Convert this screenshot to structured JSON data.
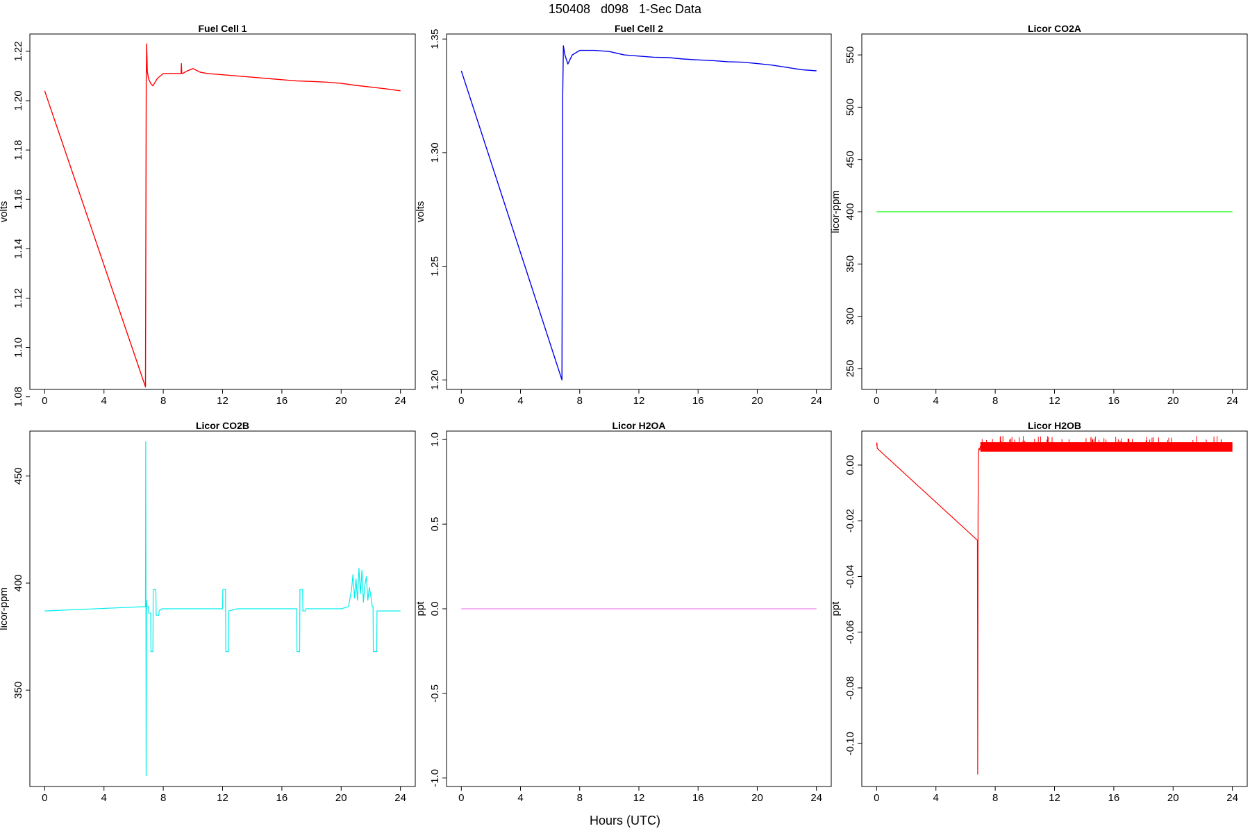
{
  "figure": {
    "title": "150408   d098   1-Sec Data",
    "xlabel": "Hours (UTC)"
  },
  "chart_data": [
    {
      "type": "line",
      "title": "Fuel Cell 1",
      "xlabel": "",
      "ylabel": "volts",
      "xlim": [
        -1,
        25
      ],
      "ylim": [
        1.083,
        1.227
      ],
      "xticks": [
        0,
        4,
        8,
        12,
        16,
        20,
        24
      ],
      "yticks": [
        1.08,
        1.1,
        1.12,
        1.14,
        1.16,
        1.18,
        1.2,
        1.22
      ],
      "ytick_labels": [
        "1.08",
        "1.10",
        "1.12",
        "1.14",
        "1.16",
        "1.18",
        "1.20",
        "1.22"
      ],
      "color": "#ff0000",
      "series": [
        {
          "x": [
            0,
            6.8,
            6.85,
            6.88,
            6.92,
            7.0,
            7.15,
            7.3,
            7.6,
            8.0,
            8.5,
            9.0,
            9.2,
            9.22,
            9.25,
            9.3,
            9.6,
            10.0,
            10.5,
            11.0,
            12.0,
            13.0,
            14.0,
            15.0,
            16.0,
            17.0,
            18.0,
            19.0,
            20.0,
            21.0,
            22.0,
            23.0,
            24.0
          ],
          "y": [
            1.204,
            1.084,
            1.21,
            1.223,
            1.212,
            1.209,
            1.207,
            1.206,
            1.209,
            1.211,
            1.211,
            1.211,
            1.211,
            1.215,
            1.211,
            1.211,
            1.212,
            1.213,
            1.2115,
            1.211,
            1.2105,
            1.21,
            1.2095,
            1.209,
            1.2085,
            1.208,
            1.2078,
            1.2075,
            1.207,
            1.2062,
            1.2055,
            1.2048,
            1.204
          ]
        }
      ]
    },
    {
      "type": "line",
      "title": "Fuel Cell 2",
      "xlabel": "",
      "ylabel": "volts",
      "xlim": [
        -1,
        25
      ],
      "ylim": [
        1.1958,
        1.3522
      ],
      "xticks": [
        0,
        4,
        8,
        12,
        16,
        20,
        24
      ],
      "yticks": [
        1.2,
        1.25,
        1.3,
        1.35
      ],
      "ytick_labels": [
        "1.20",
        "1.25",
        "1.30",
        "1.35"
      ],
      "color": "#0000ee",
      "series": [
        {
          "x": [
            0,
            6.8,
            6.85,
            6.9,
            7.0,
            7.2,
            7.5,
            8.0,
            8.5,
            9.0,
            10.0,
            11.0,
            12.0,
            13.0,
            14.0,
            15.0,
            16.0,
            17.0,
            18.0,
            19.0,
            20.0,
            21.0,
            22.0,
            23.0,
            24.0
          ],
          "y": [
            1.336,
            1.2,
            1.325,
            1.347,
            1.343,
            1.339,
            1.343,
            1.345,
            1.345,
            1.345,
            1.3445,
            1.343,
            1.3425,
            1.342,
            1.3418,
            1.3412,
            1.3408,
            1.3405,
            1.34,
            1.3398,
            1.3392,
            1.3385,
            1.3375,
            1.3365,
            1.336
          ]
        }
      ]
    },
    {
      "type": "line",
      "title": "Licor CO2A",
      "xlabel": "",
      "ylabel": "licor-ppm",
      "xlim": [
        -1,
        25
      ],
      "ylim": [
        230,
        570
      ],
      "xticks": [
        0,
        4,
        8,
        12,
        16,
        20,
        24
      ],
      "yticks": [
        250,
        300,
        350,
        400,
        450,
        500,
        550
      ],
      "ytick_labels": [
        "250",
        "300",
        "350",
        "400",
        "450",
        "500",
        "550"
      ],
      "color": "#00ff00",
      "series": [
        {
          "x": [
            0,
            24
          ],
          "y": [
            400,
            400
          ]
        }
      ]
    },
    {
      "type": "line",
      "title": "Licor CO2B",
      "xlabel": "",
      "ylabel": "licor-ppm",
      "xlim": [
        -1,
        25
      ],
      "ylim": [
        305,
        471
      ],
      "xticks": [
        0,
        4,
        8,
        12,
        16,
        20,
        24
      ],
      "yticks": [
        350,
        400,
        450
      ],
      "ytick_labels": [
        "350",
        "400",
        "450"
      ],
      "color": "#00eeee",
      "series": [
        {
          "x": [
            0,
            6.78,
            6.8,
            6.82,
            6.84,
            6.87,
            6.9,
            6.92,
            7.0,
            7.02,
            7.15,
            7.17,
            7.3,
            7.32,
            7.5,
            7.52,
            7.7,
            7.72,
            7.9,
            8.0,
            9.0,
            10.0,
            11.0,
            12.0,
            12.02,
            12.2,
            12.22,
            12.4,
            12.42,
            13.0,
            14.0,
            15.0,
            16.0,
            17.0,
            17.02,
            17.2,
            17.22,
            17.4,
            17.42,
            17.6,
            17.62,
            18.0,
            19.0,
            20.0,
            20.5,
            20.7,
            20.8,
            20.9,
            21.0,
            21.1,
            21.2,
            21.3,
            21.4,
            21.5,
            21.6,
            21.7,
            21.8,
            21.9,
            22.0,
            22.1,
            22.15,
            22.17,
            22.4,
            22.42,
            23.0,
            24.0
          ],
          "y": [
            387,
            389,
            389,
            466,
            310,
            392,
            389,
            389,
            389,
            386,
            386,
            368,
            368,
            397,
            397,
            385,
            385,
            387,
            388,
            388,
            388,
            388,
            388,
            388,
            397,
            397,
            368,
            368,
            387,
            388,
            388,
            388,
            388,
            388,
            368,
            368,
            397,
            397,
            387,
            387,
            388,
            388,
            388,
            388,
            389,
            397,
            404,
            393,
            402,
            392,
            407,
            395,
            406,
            391,
            399,
            403,
            392,
            398,
            394,
            389,
            389,
            368,
            368,
            387,
            387,
            387
          ]
        }
      ]
    },
    {
      "type": "line",
      "title": "Licor H2OA",
      "xlabel": "",
      "ylabel": "ppt",
      "xlim": [
        -1,
        25
      ],
      "ylim": [
        -1.05,
        1.05
      ],
      "xticks": [
        0,
        4,
        8,
        12,
        16,
        20,
        24
      ],
      "yticks": [
        -1.0,
        -0.5,
        0.0,
        0.5,
        1.0
      ],
      "ytick_labels": [
        "-1.0",
        "-0.5",
        "0.0",
        "0.5",
        "1.0"
      ],
      "color": "#ee82ee",
      "series": [
        {
          "x": [
            0,
            24
          ],
          "y": [
            0,
            0
          ]
        }
      ]
    },
    {
      "type": "line",
      "title": "Licor H2OB",
      "xlabel": "",
      "ylabel": "ppt",
      "xlim": [
        -1,
        25
      ],
      "ylim": [
        -0.1154,
        0.0122
      ],
      "xticks": [
        0,
        4,
        8,
        12,
        16,
        20,
        24
      ],
      "yticks": [
        -0.1,
        -0.08,
        -0.06,
        -0.04,
        -0.02,
        0.0
      ],
      "ytick_labels": [
        "-0.10",
        "-0.08",
        "-0.06",
        "-0.04",
        "-0.02",
        "0.00"
      ],
      "color": "#ff0000",
      "series": [
        {
          "x": [
            0,
            0.02,
            0.04,
            6.8,
            6.82,
            6.84,
            6.86,
            6.9,
            6.95,
            7.0,
            7.1,
            7.3,
            8.0,
            12.0,
            16.0,
            20.0,
            24.0
          ],
          "y": [
            0.007,
            0.008,
            0.006,
            -0.027,
            -0.111,
            -0.02,
            0.003,
            0.006,
            0.0055,
            0.0068,
            0.0062,
            0.0065,
            0.0065,
            0.0065,
            0.0065,
            0.0065,
            0.0065
          ]
        }
      ],
      "noise_band": {
        "x": [
          7.0,
          24.0
        ],
        "y": [
          0.0048,
          0.0082
        ]
      }
    }
  ]
}
